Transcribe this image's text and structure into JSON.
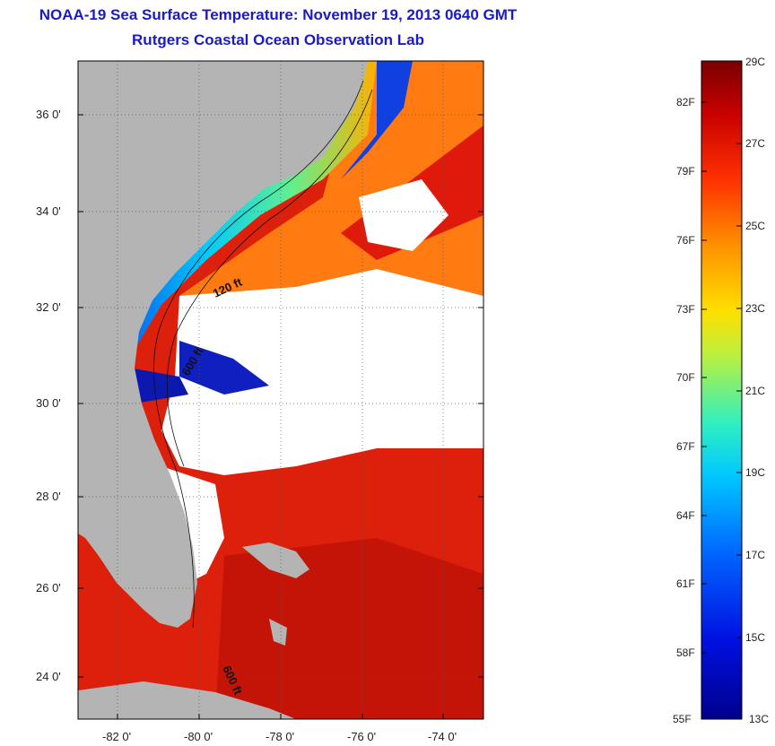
{
  "title": "NOAA-19 Sea Surface Temperature:  November 19, 2013 0640 GMT",
  "subtitle": "Rutgers Coastal Ocean Observation Lab",
  "map": {
    "lat_ticks": [
      "36 0'",
      "34 0'",
      "32 0'",
      "30 0'",
      "28 0'",
      "26 0'",
      "24 0'"
    ],
    "lon_ticks": [
      "-82 0'",
      "-80 0'",
      "-78 0'",
      "-76 0'",
      "-74 0'"
    ],
    "contour_labels": [
      "120 ft",
      "600 ft",
      "600 ft"
    ],
    "colors": {
      "land": "#b4b4b4",
      "cloud": "#ffffff",
      "warm": "#e0200a",
      "cool": "#0a14b4"
    }
  },
  "colorbar": {
    "celsius": [
      "29C",
      "27C",
      "25C",
      "23C",
      "21C",
      "19C",
      "17C",
      "15C",
      "13C"
    ],
    "fahrenheit": [
      "82F",
      "79F",
      "76F",
      "73F",
      "70F",
      "67F",
      "64F",
      "61F",
      "58F",
      "55F"
    ],
    "range_c": [
      13,
      29
    ]
  }
}
